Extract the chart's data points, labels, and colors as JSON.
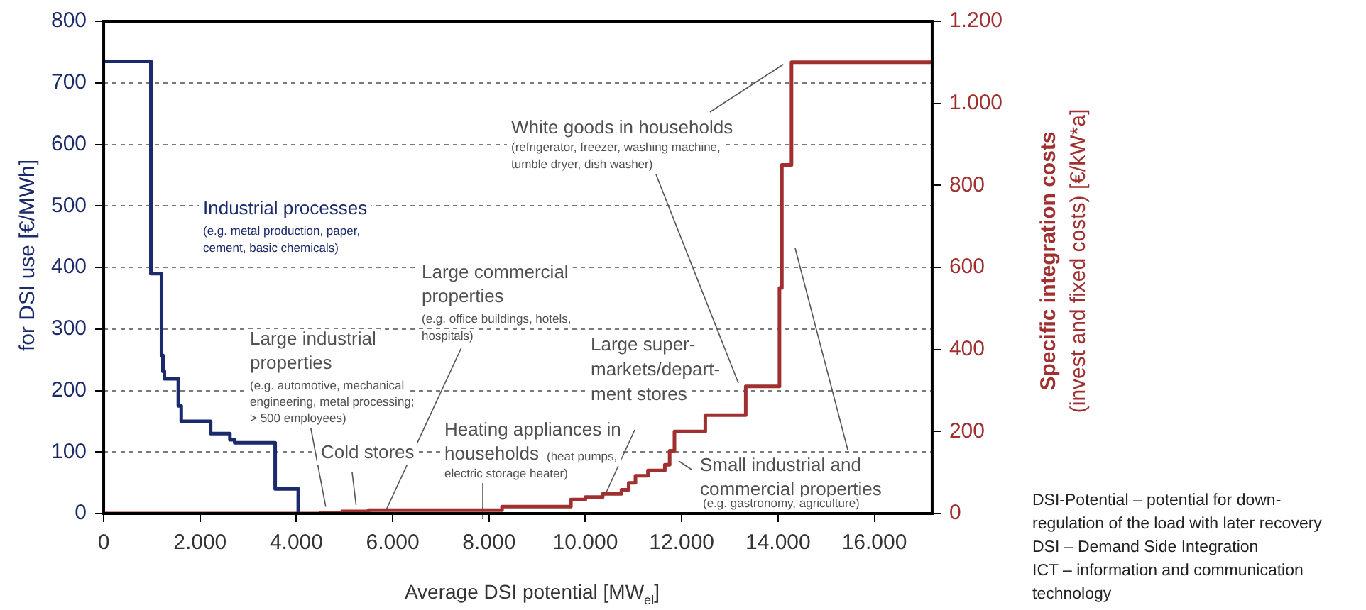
{
  "chart_data": {
    "type": "step",
    "xlabel": "Average DSI potential [MW$_{el}$]",
    "ylabel": "for DSI use [€/MWh]",
    "y2label": "Specific integration costs\n(invest and fixed costs) [€/kW*a]",
    "series": [
      {
        "color": "#1b2a6b",
        "x": [
          0,
          980,
          1200,
          1230,
          1260,
          1550,
          1610,
          2220,
          2620,
          2720,
          3560,
          4040
        ],
        "values": [
          735,
          390,
          257,
          231,
          219,
          175,
          150,
          130,
          120,
          115,
          40,
          0
        ]
      },
      {
        "color": "#a03030",
        "axis": "y2",
        "x": [
          0,
          4500,
          4950,
          5500,
          8270,
          9700,
          10000,
          10360,
          10750,
          10900,
          11040,
          11300,
          11650,
          11750,
          11850,
          12490,
          13330,
          14030,
          14080,
          14280,
          17200
        ],
        "values": [
          0,
          2,
          5,
          8,
          17,
          34,
          40,
          48,
          58,
          75,
          92,
          105,
          119,
          153,
          200,
          240,
          310,
          550,
          850,
          1100,
          1100
        ]
      }
    ],
    "xlim": [
      0,
      17200
    ],
    "xticks": [
      0,
      {
        "value": 2000,
        "label": "2.000"
      },
      {
        "value": 4000,
        "label": "4.000"
      },
      {
        "value": 6000,
        "label": "6.000"
      },
      {
        "value": 8000,
        "label": "8.000"
      },
      {
        "value": 10000,
        "label": "10.000"
      },
      {
        "value": 12000,
        "label": "12.000"
      },
      {
        "value": 14000,
        "label": "14.000"
      },
      {
        "value": 16000,
        "label": "16.000"
      }
    ],
    "ylim": [
      0,
      800
    ],
    "yticks": [
      0,
      100,
      200,
      300,
      400,
      500,
      600,
      700,
      800
    ],
    "y2lim": [
      0,
      1200
    ],
    "y2ticks": [
      0,
      200,
      400,
      600,
      800,
      {
        "value": 1000,
        "label": "1.000"
      },
      {
        "value": 1200,
        "label": "1.200"
      }
    ],
    "grid": "y",
    "legend": false,
    "annotations": [
      "Industrial processes",
      "(e.g. metal production, paper,\ncement, basic chemicals)",
      "Large commercial\nproperties",
      {
        "text": "(e.g. office buildings, hotels,\nhospitals)",
        "x": 5860,
        "y": 5
      },
      "Large industrial\nproperties",
      {
        "text": "(e.g. automotive, mechanical\nengineering, metal processing;\n> 500 employees)",
        "x": 4610,
        "y": 11
      },
      {
        "text": "Cold stores",
        "x": 5240,
        "y": 14
      },
      {
        "text": "Heating appliances in\nhouseholds",
        "x": 10420,
        "y": 32
      },
      "(heat pumps,\nelectric storage heater)",
      "Large super-\nmarkets/depart-\nment stores",
      {
        "text": "White goods in households",
        "x": 14110,
        "y": 730
      },
      "(refrigerator, freezer, washing machine,\ntumble dryer, dish washer)",
      "Small industrial and\ncommercial properties",
      "(e.g. gastronomy, agriculture)",
      "DSI-Potential – potential for down-\nregulation of the load with later recovery\nDSI – Demand Side Integration\nICT – information and communication\ntechnology"
    ]
  }
}
